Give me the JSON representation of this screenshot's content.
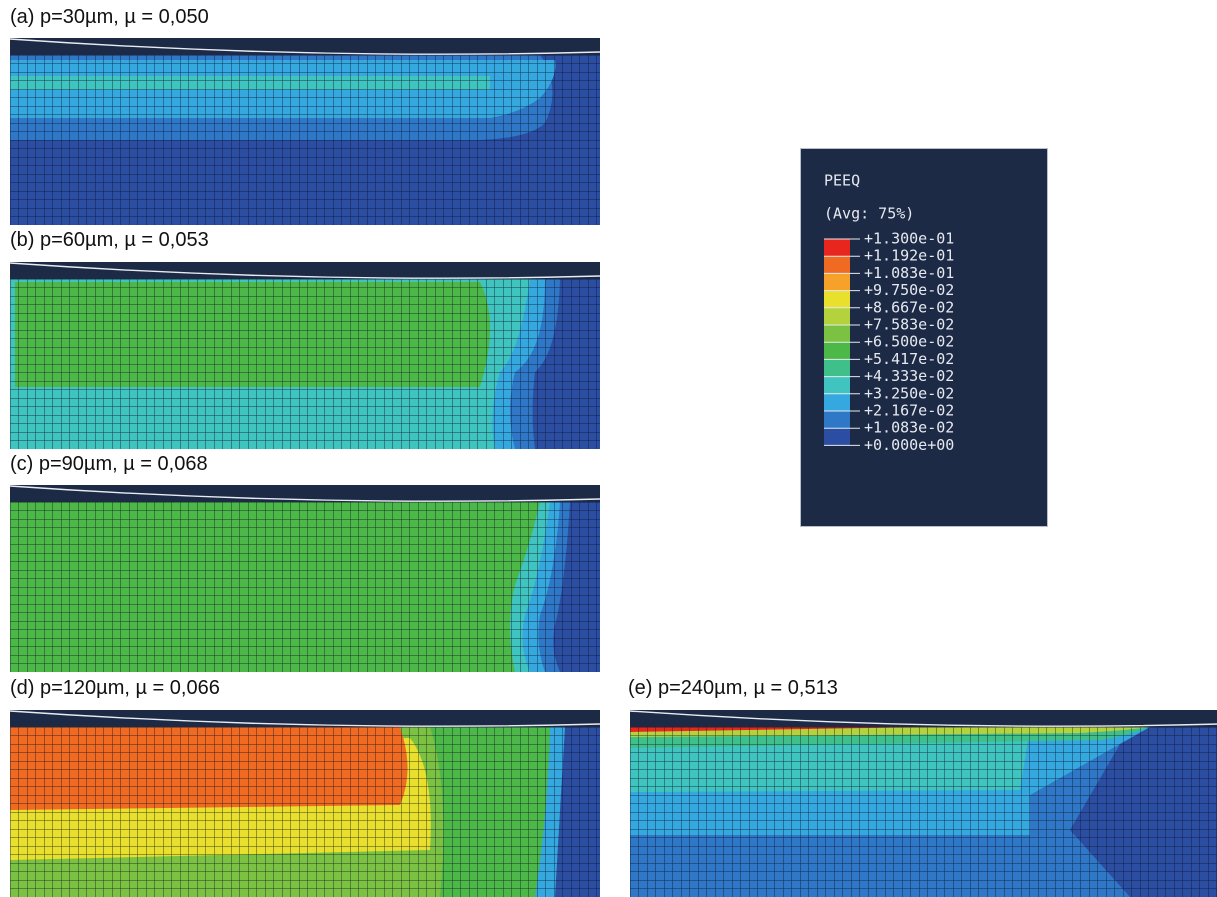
{
  "panels": [
    {
      "label": "(a) p=30µm, µ = 0,050"
    },
    {
      "label": "(b) p=60µm, µ = 0,053"
    },
    {
      "label": "(c) p=90µm, µ =  0,068"
    },
    {
      "label": "(d) p=120µm, µ = 0,066"
    },
    {
      "label": "(e) p=240µm, µ = 0,513"
    }
  ],
  "legend": {
    "title": "PEEQ",
    "subtitle": "(Avg: 75%)",
    "labels": [
      "+1.300e-01",
      "+1.192e-01",
      "+1.083e-01",
      "+9.750e-02",
      "+8.667e-02",
      "+7.583e-02",
      "+6.500e-02",
      "+5.417e-02",
      "+4.333e-02",
      "+3.250e-02",
      "+2.167e-02",
      "+1.083e-02",
      "+0.000e+00"
    ],
    "colors": [
      "#e8261e",
      "#f06a22",
      "#f5a12a",
      "#e8e02c",
      "#b3d23c",
      "#7cc242",
      "#4cb848",
      "#3fbf8a",
      "#3fc4c0",
      "#35a9df",
      "#2f78c8",
      "#2b4ea3"
    ]
  }
}
